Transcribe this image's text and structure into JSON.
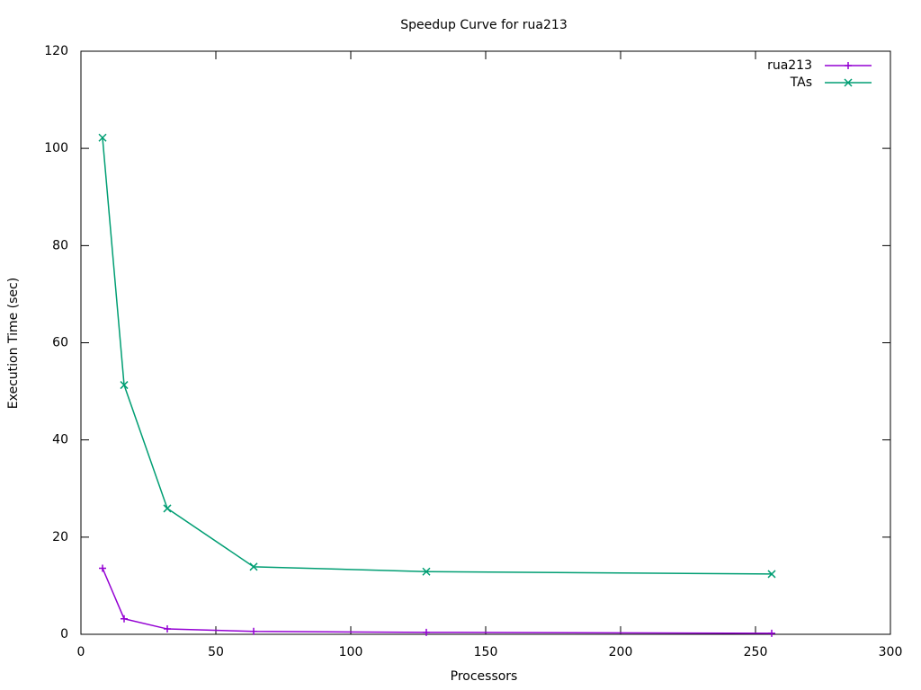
{
  "chart_data": {
    "type": "line",
    "title": "Speedup Curve for rua213",
    "x_label": "Processors",
    "y_label": "Execution Time (sec)",
    "x": [
      8,
      16,
      32,
      64,
      128,
      256
    ],
    "series": [
      {
        "name": "rua213",
        "color": "#9400d3",
        "marker": "plus",
        "values": [
          13.6,
          3.2,
          1.1,
          0.6,
          0.4,
          0.2
        ]
      },
      {
        "name": "TAs",
        "color": "#009e73",
        "marker": "cross",
        "values": [
          102.2,
          51.3,
          25.9,
          13.9,
          12.9,
          12.4
        ]
      }
    ],
    "xlim": [
      0,
      300
    ],
    "xticks": [
      0,
      50,
      100,
      150,
      200,
      250,
      300
    ],
    "ylim": [
      0,
      120
    ],
    "yticks": [
      0,
      20,
      40,
      60,
      80,
      100,
      120
    ],
    "legend": "top-right"
  }
}
